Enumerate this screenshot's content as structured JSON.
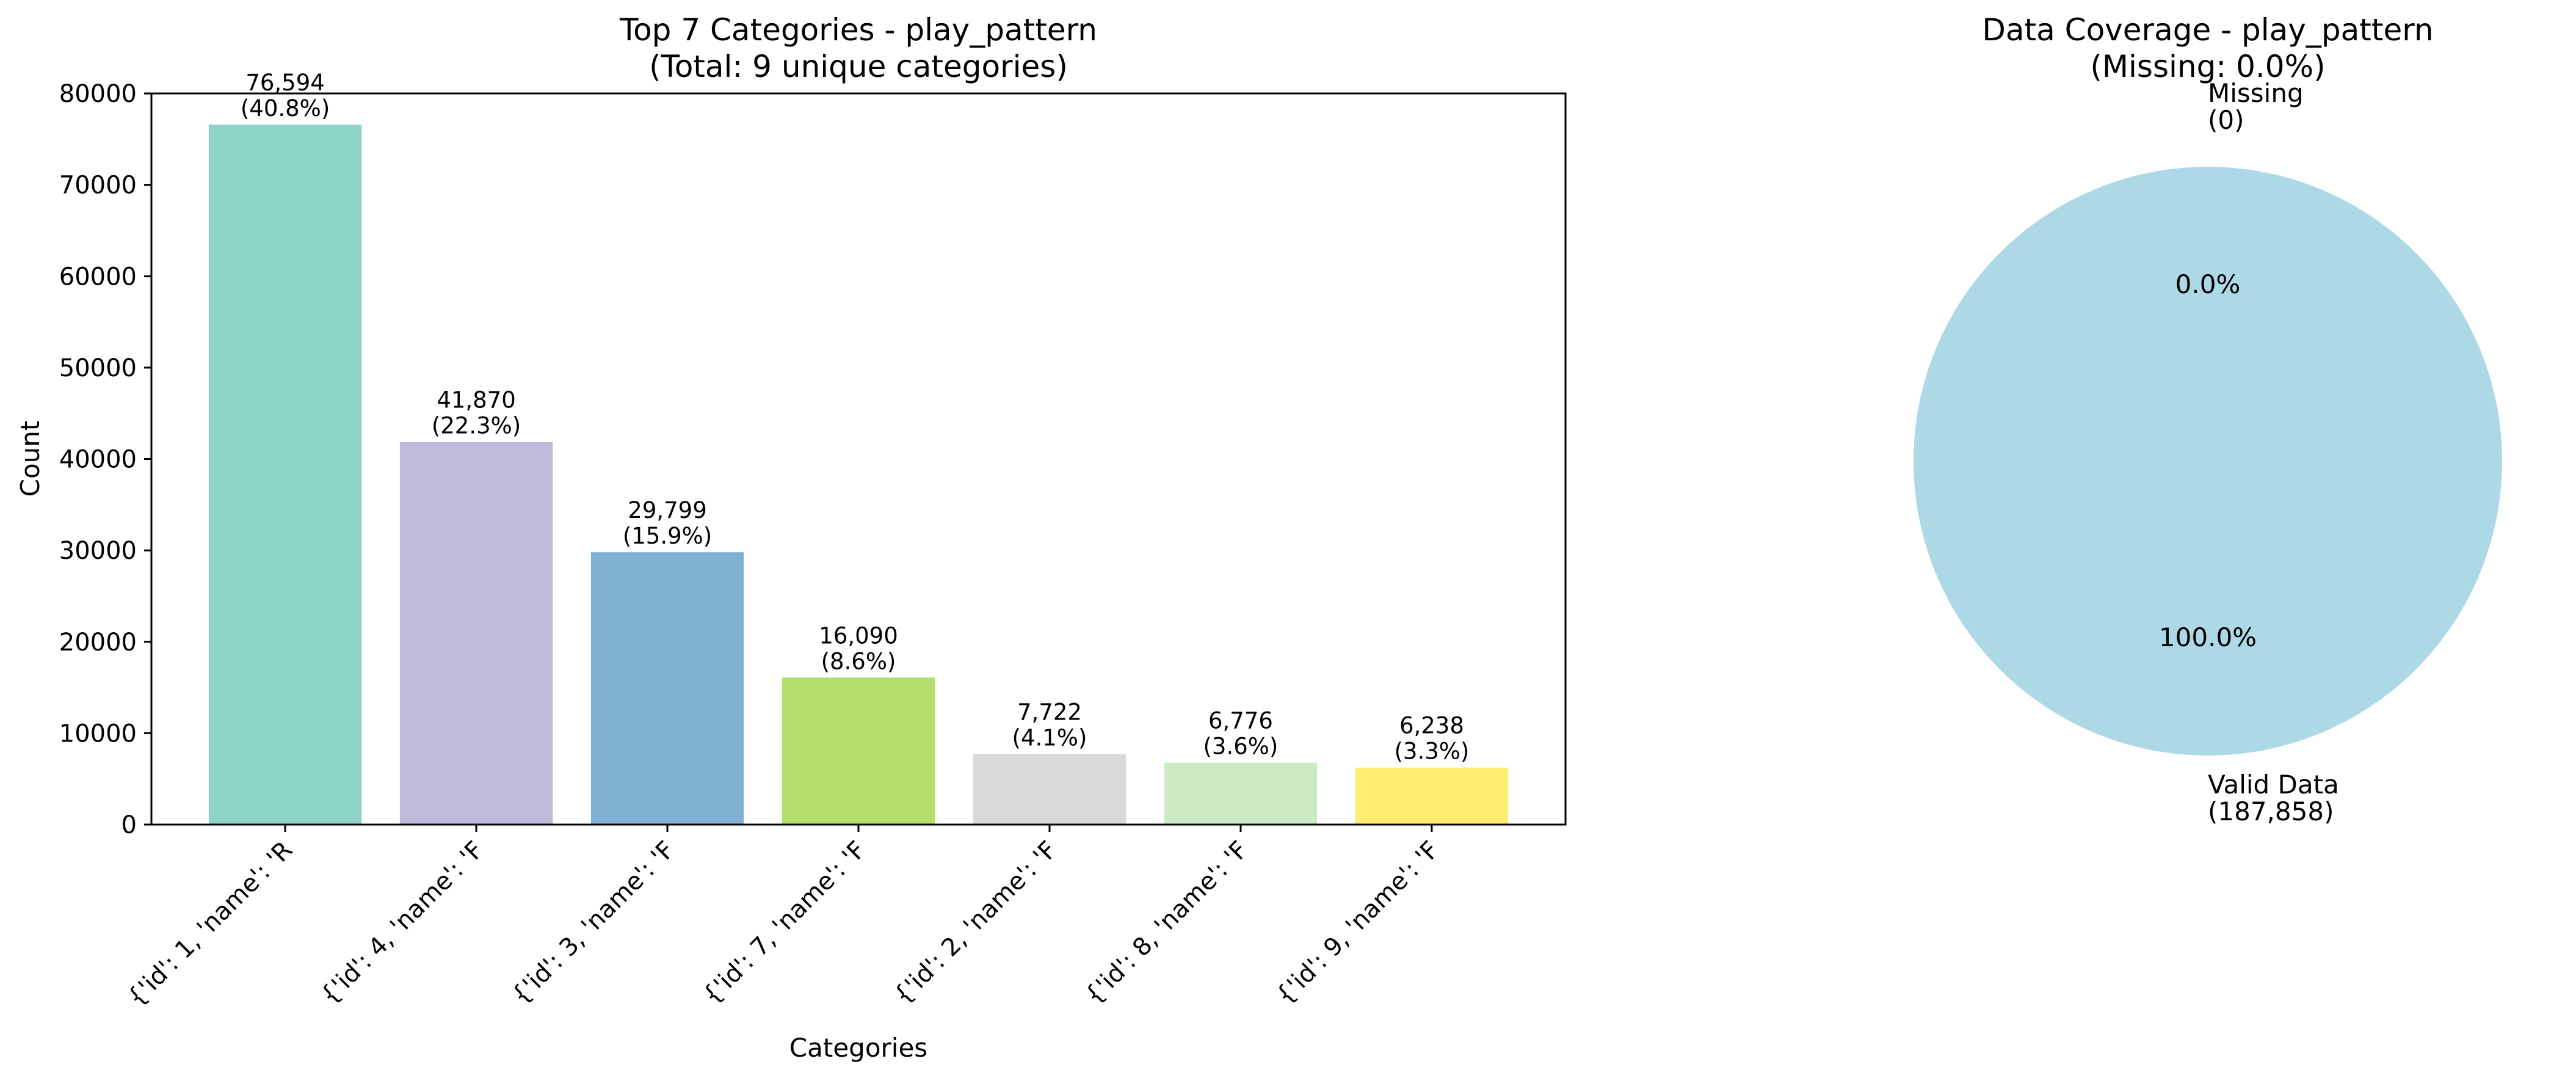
{
  "chart_data": [
    {
      "type": "bar",
      "title": "Top 7 Categories - play_pattern",
      "subtitle": "(Total: 9 unique categories)",
      "xlabel": "Categories",
      "ylabel": "Count",
      "ylim": [
        0,
        80000
      ],
      "yticks": [
        0,
        10000,
        20000,
        30000,
        40000,
        50000,
        60000,
        70000,
        80000
      ],
      "grid": false,
      "categories": [
        "{'id': 1, 'name': 'R",
        "{'id': 4, 'name': 'F",
        "{'id': 3, 'name': 'F",
        "{'id': 7, 'name': 'F",
        "{'id': 2, 'name': 'F",
        "{'id': 8, 'name': 'F",
        "{'id': 9, 'name': 'F"
      ],
      "values": [
        76594,
        41870,
        29799,
        16090,
        7722,
        6776,
        6238
      ],
      "value_labels": [
        "76,594",
        "41,870",
        "29,799",
        "16,090",
        "7,722",
        "6,776",
        "6,238"
      ],
      "percent_labels": [
        "(40.8%)",
        "(22.3%)",
        "(15.9%)",
        "(8.6%)",
        "(4.1%)",
        "(3.6%)",
        "(3.3%)"
      ],
      "colors": [
        "#8dd3c7",
        "#bebada",
        "#80b1d3",
        "#b3de69",
        "#d9d9d9",
        "#ccebc5",
        "#ffed6f"
      ]
    },
    {
      "type": "pie",
      "title": "Data Coverage - play_pattern",
      "subtitle": "(Missing: 0.0%)",
      "slices": [
        {
          "label": "Valid Data",
          "count_label": "(187,858)",
          "value": 187858,
          "percent": "100.0%",
          "color": "#add8e6"
        },
        {
          "label": "Missing",
          "count_label": "(0)",
          "value": 0,
          "percent": "0.0%",
          "color": "#f08080"
        }
      ]
    }
  ]
}
